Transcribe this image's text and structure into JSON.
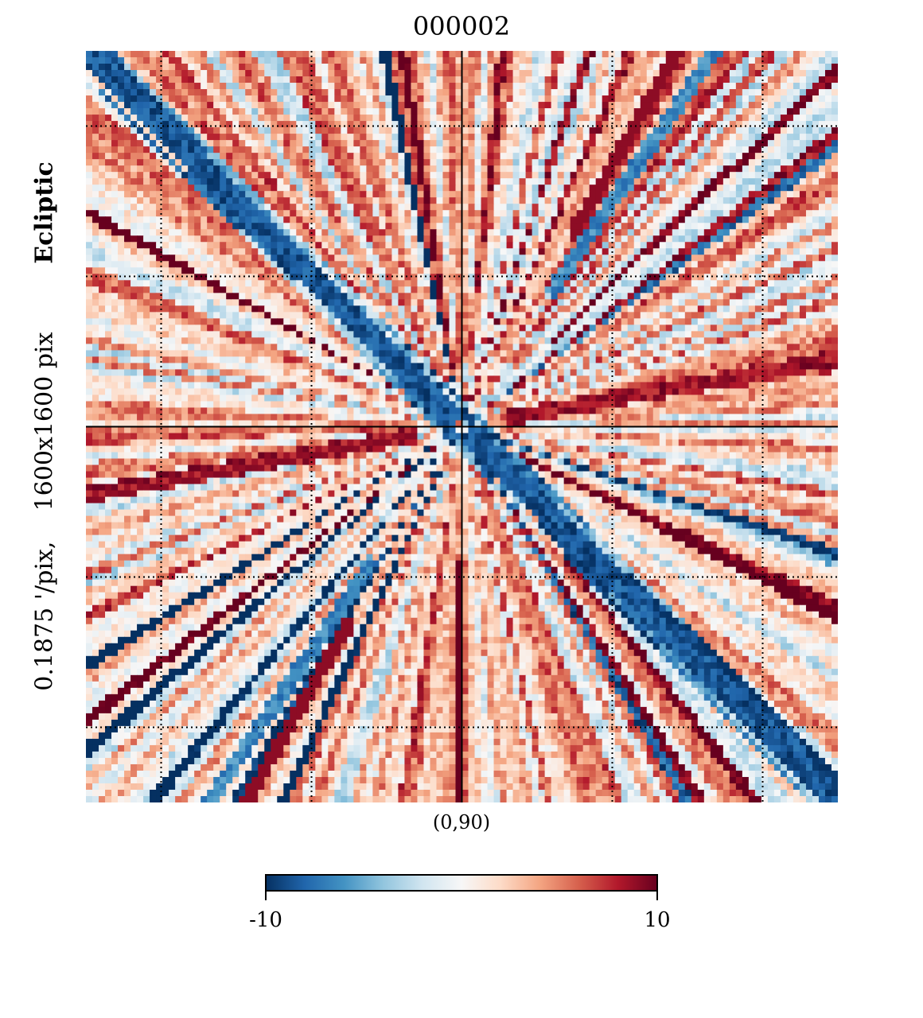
{
  "chart_data": {
    "type": "heatmap",
    "title": "000002",
    "projection": "gnomonic",
    "coord_system": "Ecliptic",
    "resolution_text": "0.1875 '/pix,",
    "size_text": "1600x1600 pix",
    "center_label": "(0,90)",
    "colormap": "RdBu_r",
    "colorbar": {
      "min": -10,
      "max": 10,
      "tick_labels": [
        "-10",
        "10"
      ],
      "colors": [
        "#053061",
        "#2166ac",
        "#4393c3",
        "#92c5de",
        "#d1e5f0",
        "#f7f7f7",
        "#fddbc7",
        "#f4a582",
        "#d6604d",
        "#b2182b",
        "#67001f"
      ]
    },
    "graticule": {
      "style": "dotted",
      "color": "#000000"
    },
    "dominant_features": [
      {
        "name": "diagonal-blue-streak",
        "value": -10
      },
      {
        "name": "horizontal-red-streak",
        "value": 10
      },
      {
        "name": "radial-background",
        "value": 2
      }
    ]
  }
}
